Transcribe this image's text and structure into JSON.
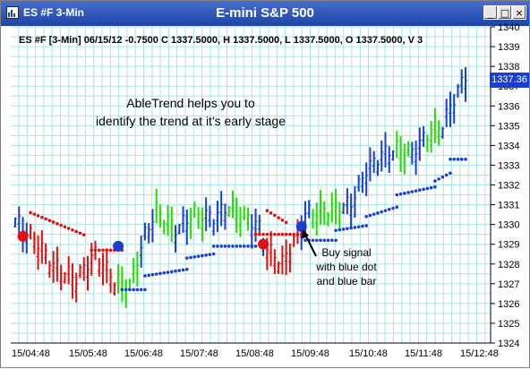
{
  "window": {
    "left_title": "ES #F 3-Min",
    "center_title": "E-mini S&P 500",
    "minimize_label": "_",
    "maximize_label": "□",
    "close_label": "×"
  },
  "info_line": "ES #F [3-Min] 06/15/12  -0.7500 C 1337.5000, H 1337.5000, L 1337.5000, O 1337.5000, V 3",
  "annotations": {
    "headline_line1": "AbleTrend helps you to",
    "headline_line2": "identify the trend at it's early stage",
    "buy_line1": "Buy signal",
    "buy_line2": "with blue dot",
    "buy_line3": "and blue bar"
  },
  "last_price": "1337.36",
  "colors": {
    "up": "#1a3fd0",
    "down": "#e01010",
    "neutral": "#22dd00",
    "grid": "#a8e6e6"
  },
  "chart_data": {
    "type": "bar",
    "title": "E-mini S&P 500",
    "ylim": [
      1324,
      1340
    ],
    "y_ticks": [
      1324,
      1325,
      1326,
      1327,
      1328,
      1329,
      1330,
      1331,
      1332,
      1333,
      1334,
      1335,
      1336,
      1337,
      1338,
      1339,
      1340
    ],
    "x_ticks": [
      "15/04:48",
      "15/05:48",
      "15/06:48",
      "15/07:48",
      "15/08:48",
      "15/09:48",
      "15/10:48",
      "15/11:48",
      "15/12:48"
    ],
    "grid": true,
    "signal_dots": [
      {
        "bar": 2,
        "value": 1329.4,
        "color": "red"
      },
      {
        "bar": 27,
        "value": 1328.9,
        "color": "blue"
      },
      {
        "bar": 65,
        "value": 1329.0,
        "color": "red"
      },
      {
        "bar": 75,
        "value": 1329.9,
        "color": "blue"
      }
    ]
  }
}
